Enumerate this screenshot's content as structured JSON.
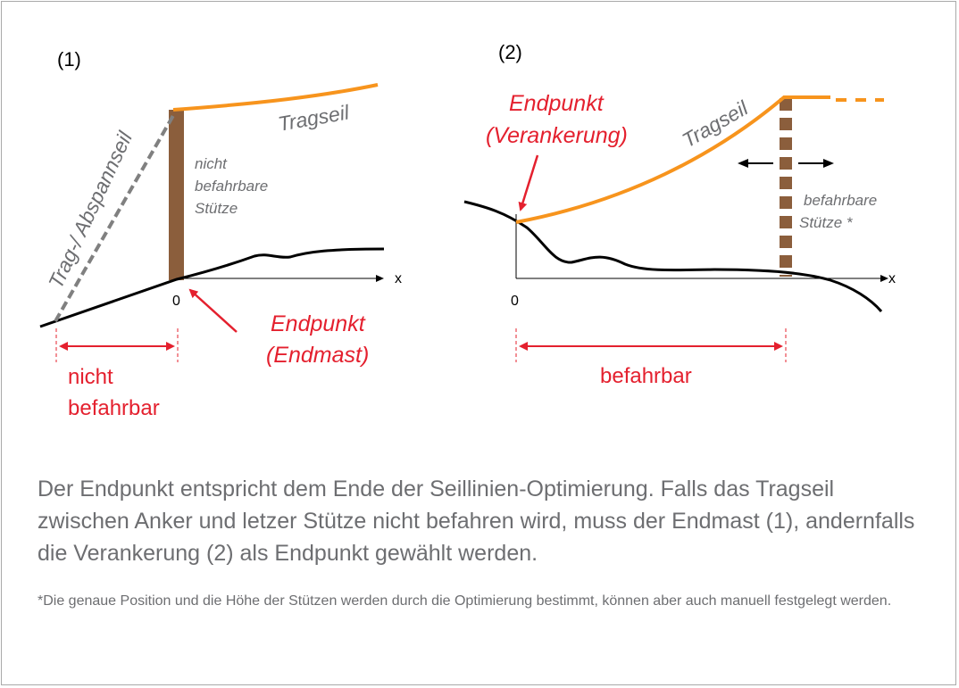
{
  "panel1": {
    "label": "(1)",
    "tragseil": "Tragseil",
    "abspannseil": "Trag-/ Abspannseil",
    "stuetze": [
      "nicht",
      "befahrbare",
      "Stütze"
    ],
    "axis_x": "x",
    "origin": "0",
    "endpunkt": [
      "Endpunkt",
      "(Endmast)"
    ],
    "range": [
      "nicht",
      "befahrbar"
    ]
  },
  "panel2": {
    "label": "(2)",
    "tragseil": "Tragseil",
    "stuetze": [
      "befahrbare",
      "Stütze *"
    ],
    "axis_x": "x",
    "origin": "0",
    "endpunkt": [
      "Endpunkt",
      "(Verankerung)"
    ],
    "range": "befahrbar"
  },
  "caption": "Der Endpunkt entspricht dem Ende der Seillinien-Optimierung. Falls das Tragseil zwischen Anker und letzer Stütze nicht befahren wird, muss der Endmast (1), andernfalls die Verankerung (2) als Endpunkt gewählt werden.",
  "footnote": "*Die genaue Position und die Höhe der Stützen werden durch die Optimierung bestimmt, können aber auch manuell festgelegt werden.",
  "colors": {
    "rope": "#f7941d",
    "mast": "#8b5e3c",
    "highlight": "#e4202e",
    "gray_text": "#6d6e71",
    "terrain": "#000000"
  }
}
